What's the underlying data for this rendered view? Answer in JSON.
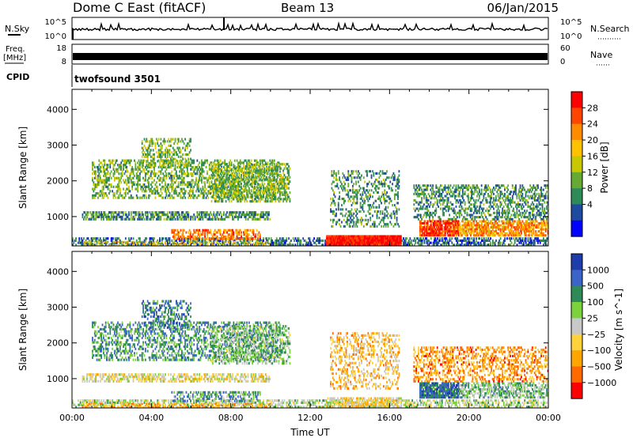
{
  "header": {
    "station": "Dome C East (fitACF)",
    "beam": "Beam 13",
    "date": "06/Jan/2015"
  },
  "top_panels": {
    "nsky_label": "N.Sky",
    "nsky_ticks": [
      "10^5",
      "10^0"
    ],
    "nsearch_label": "N.Search",
    "nsearch_ticks": [
      "10^5",
      "10^0"
    ],
    "freq_label_1": "Freq.",
    "freq_label_2": "[MHz]",
    "freq_ticks": [
      "18",
      "8"
    ],
    "nave_label": "Nave",
    "nave_ticks": [
      "60",
      "0"
    ],
    "cpid_label": "CPID",
    "cpid_value": "twofsound 3501"
  },
  "chart_data": [
    {
      "type": "heatmap",
      "name": "power",
      "xlabel": "Time UT",
      "ylabel": "Slant Range [km]",
      "x_tick_labels": [
        "00:00",
        "04:00",
        "08:00",
        "12:00",
        "16:00",
        "20:00",
        "00:00"
      ],
      "x_range_hours": [
        0,
        24
      ],
      "y_ticks": [
        1000,
        2000,
        3000,
        4000
      ],
      "y_range_km": [
        180,
        4560
      ],
      "colorbar_label": "Power [dB]",
      "colorbar_ticks": [
        "28",
        "24",
        "20",
        "16",
        "12",
        "8",
        "4"
      ],
      "colorbar_colors": [
        "#ff0000",
        "#ff4500",
        "#ff8c00",
        "#ffc200",
        "#c8c800",
        "#66aa33",
        "#2e8b57",
        "#1e4aa0",
        "#0000ff"
      ],
      "regions": [
        {
          "x": [
            0.0,
            24.0
          ],
          "y": [
            180,
            420
          ],
          "level": 0.22,
          "density": 0.55
        },
        {
          "x": [
            0.5,
            10.0
          ],
          "y": [
            900,
            1150
          ],
          "level": 0.3,
          "density": 0.6
        },
        {
          "x": [
            1.0,
            10.5
          ],
          "y": [
            1500,
            2600
          ],
          "level": 0.38,
          "density": 0.45
        },
        {
          "x": [
            3.5,
            6.0
          ],
          "y": [
            2400,
            3200
          ],
          "level": 0.4,
          "density": 0.4
        },
        {
          "x": [
            7.0,
            11.0
          ],
          "y": [
            1400,
            2500
          ],
          "level": 0.4,
          "density": 0.5
        },
        {
          "x": [
            12.8,
            16.6
          ],
          "y": [
            180,
            480
          ],
          "level": 0.95,
          "density": 1.0
        },
        {
          "x": [
            13.0,
            16.5
          ],
          "y": [
            700,
            2300
          ],
          "level": 0.3,
          "density": 0.3
        },
        {
          "x": [
            17.2,
            24.0
          ],
          "y": [
            900,
            1900
          ],
          "level": 0.3,
          "density": 0.45
        },
        {
          "x": [
            17.5,
            19.5
          ],
          "y": [
            450,
            900
          ],
          "level": 0.85,
          "density": 0.85
        },
        {
          "x": [
            19.5,
            24.0
          ],
          "y": [
            450,
            900
          ],
          "level": 0.7,
          "density": 0.7
        },
        {
          "x": [
            5.0,
            9.5
          ],
          "y": [
            350,
            650
          ],
          "level": 0.75,
          "density": 0.55
        },
        {
          "x": [
            0.5,
            10.0
          ],
          "y": [
            180,
            320
          ],
          "level": 0.55,
          "density": 0.4
        }
      ]
    },
    {
      "type": "heatmap",
      "name": "velocity",
      "xlabel": "Time UT",
      "ylabel": "Slant Range [km]",
      "x_tick_labels": [
        "00:00",
        "04:00",
        "08:00",
        "12:00",
        "16:00",
        "20:00",
        "00:00"
      ],
      "x_range_hours": [
        0,
        24
      ],
      "y_ticks": [
        1000,
        2000,
        3000,
        4000
      ],
      "y_range_km": [
        180,
        4560
      ],
      "colorbar_label": "Velocity [m s^-1]",
      "colorbar_ticks": [
        "1000",
        "500",
        "100",
        "25",
        "−25",
        "−100",
        "−500",
        "−1000"
      ],
      "colorbar_colors": [
        "#1e3caa",
        "#3c64c8",
        "#2e8b57",
        "#7cd23c",
        "#c8c8c8",
        "#ffd23c",
        "#ffa500",
        "#ff6a00",
        "#ff0000"
      ],
      "regions": [
        {
          "x": [
            0.0,
            24.0
          ],
          "y": [
            180,
            420
          ],
          "level": 0.55,
          "density": 0.5
        },
        {
          "x": [
            0.5,
            10.0
          ],
          "y": [
            900,
            1150
          ],
          "level": 0.45,
          "density": 0.55
        },
        {
          "x": [
            1.0,
            10.5
          ],
          "y": [
            1500,
            2600
          ],
          "level": 0.72,
          "density": 0.4
        },
        {
          "x": [
            3.5,
            6.0
          ],
          "y": [
            2400,
            3200
          ],
          "level": 0.78,
          "density": 0.35
        },
        {
          "x": [
            7.0,
            11.0
          ],
          "y": [
            1400,
            2500
          ],
          "level": 0.6,
          "density": 0.45
        },
        {
          "x": [
            12.8,
            16.6
          ],
          "y": [
            200,
            480
          ],
          "level": 0.4,
          "density": 0.6
        },
        {
          "x": [
            13.0,
            16.5
          ],
          "y": [
            700,
            2300
          ],
          "level": 0.35,
          "density": 0.3
        },
        {
          "x": [
            17.2,
            24.0
          ],
          "y": [
            900,
            1900
          ],
          "level": 0.25,
          "density": 0.4
        },
        {
          "x": [
            17.5,
            19.5
          ],
          "y": [
            450,
            900
          ],
          "level": 0.82,
          "density": 0.85
        },
        {
          "x": [
            19.5,
            24.0
          ],
          "y": [
            450,
            900
          ],
          "level": 0.62,
          "density": 0.6
        },
        {
          "x": [
            5.0,
            9.5
          ],
          "y": [
            350,
            650
          ],
          "level": 0.7,
          "density": 0.5
        },
        {
          "x": [
            0.5,
            10.0
          ],
          "y": [
            180,
            320
          ],
          "level": 0.3,
          "density": 0.4
        }
      ]
    }
  ]
}
